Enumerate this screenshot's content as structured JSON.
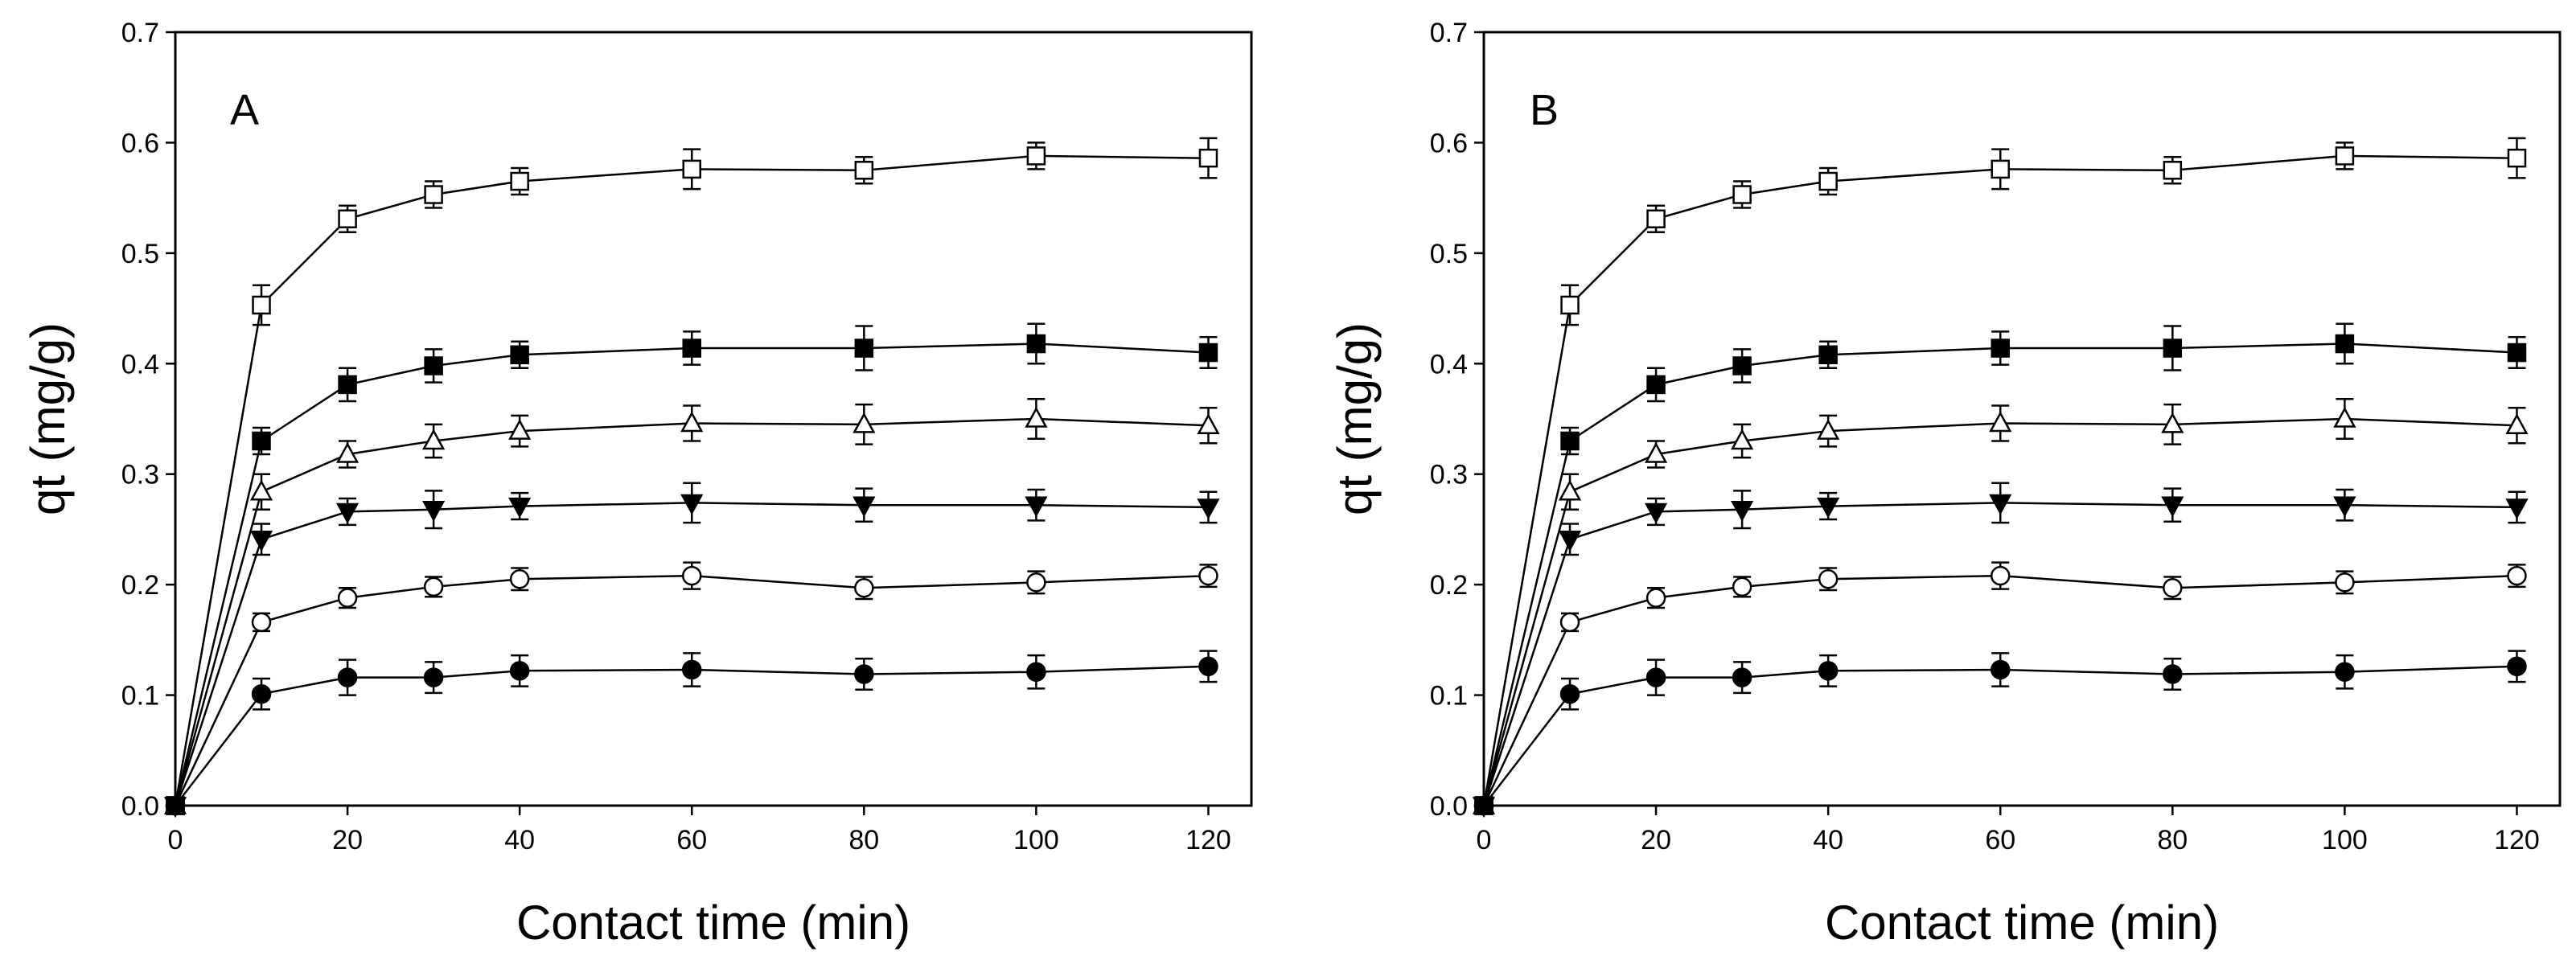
{
  "chart_data": [
    {
      "type": "line",
      "panel_label": "A",
      "xlabel": "Contact time (min)",
      "ylabel": "qt (mg/g)",
      "xlim": [
        0,
        125
      ],
      "ylim": [
        0,
        0.7
      ],
      "x_ticks": [
        0,
        20,
        40,
        60,
        80,
        100,
        120
      ],
      "x_tick_labels": [
        "0",
        "20",
        "40",
        "60",
        "80",
        "100",
        "120"
      ],
      "y_ticks": [
        0,
        0.1,
        0.2,
        0.3,
        0.4,
        0.5,
        0.6,
        0.7
      ],
      "y_tick_labels": [
        "0.0",
        "0.1",
        "0.2",
        "0.3",
        "0.4",
        "0.5",
        "0.6",
        "0.7"
      ],
      "grid": false,
      "x": [
        0,
        10,
        20,
        30,
        40,
        60,
        80,
        100,
        120
      ],
      "series": [
        {
          "marker": "square-open",
          "values": [
            0,
            0.453,
            0.531,
            0.553,
            0.565,
            0.576,
            0.575,
            0.588,
            0.586
          ],
          "errors": [
            0,
            0.018,
            0.012,
            0.012,
            0.012,
            0.018,
            0.012,
            0.012,
            0.018
          ]
        },
        {
          "marker": "square-filled",
          "values": [
            0,
            0.33,
            0.381,
            0.398,
            0.408,
            0.414,
            0.414,
            0.418,
            0.41
          ],
          "errors": [
            0,
            0.012,
            0.015,
            0.015,
            0.012,
            0.015,
            0.02,
            0.018,
            0.014
          ]
        },
        {
          "marker": "triangle-up-open",
          "values": [
            0,
            0.284,
            0.318,
            0.33,
            0.339,
            0.346,
            0.345,
            0.35,
            0.344
          ],
          "errors": [
            0,
            0.016,
            0.012,
            0.015,
            0.014,
            0.016,
            0.018,
            0.018,
            0.016
          ]
        },
        {
          "marker": "triangle-down-filled",
          "values": [
            0,
            0.241,
            0.266,
            0.268,
            0.271,
            0.274,
            0.272,
            0.272,
            0.27
          ],
          "errors": [
            0,
            0.014,
            0.012,
            0.017,
            0.012,
            0.018,
            0.015,
            0.014,
            0.014
          ]
        },
        {
          "marker": "circle-open",
          "values": [
            0,
            0.166,
            0.188,
            0.198,
            0.205,
            0.208,
            0.197,
            0.202,
            0.208
          ],
          "errors": [
            0,
            0.008,
            0.009,
            0.009,
            0.01,
            0.012,
            0.01,
            0.01,
            0.01
          ]
        },
        {
          "marker": "circle-filled",
          "values": [
            0,
            0.101,
            0.116,
            0.116,
            0.122,
            0.123,
            0.119,
            0.121,
            0.126
          ],
          "errors": [
            0,
            0.014,
            0.016,
            0.014,
            0.014,
            0.015,
            0.014,
            0.015,
            0.014
          ]
        }
      ]
    },
    {
      "type": "line",
      "panel_label": "B",
      "xlabel": "Contact time (min)",
      "ylabel": "qt (mg/g)",
      "xlim": [
        0,
        125
      ],
      "ylim": [
        0,
        0.7
      ],
      "x_ticks": [
        0,
        20,
        40,
        60,
        80,
        100,
        120
      ],
      "x_tick_labels": [
        "0",
        "20",
        "40",
        "60",
        "80",
        "100",
        "120"
      ],
      "y_ticks": [
        0,
        0.1,
        0.2,
        0.3,
        0.4,
        0.5,
        0.6,
        0.7
      ],
      "y_tick_labels": [
        "0.0",
        "0.1",
        "0.2",
        "0.3",
        "0.4",
        "0.5",
        "0.6",
        "0.7"
      ],
      "grid": false,
      "x": [
        0,
        10,
        20,
        30,
        40,
        60,
        80,
        100,
        120
      ],
      "series": [
        {
          "marker": "square-open",
          "values": [
            0,
            0.453,
            0.531,
            0.553,
            0.565,
            0.576,
            0.575,
            0.588,
            0.586
          ],
          "errors": [
            0,
            0.018,
            0.012,
            0.012,
            0.012,
            0.018,
            0.012,
            0.012,
            0.018
          ]
        },
        {
          "marker": "square-filled",
          "values": [
            0,
            0.33,
            0.381,
            0.398,
            0.408,
            0.414,
            0.414,
            0.418,
            0.41
          ],
          "errors": [
            0,
            0.012,
            0.015,
            0.015,
            0.012,
            0.015,
            0.02,
            0.018,
            0.014
          ]
        },
        {
          "marker": "triangle-up-open",
          "values": [
            0,
            0.284,
            0.318,
            0.33,
            0.339,
            0.346,
            0.345,
            0.35,
            0.344
          ],
          "errors": [
            0,
            0.016,
            0.012,
            0.015,
            0.014,
            0.016,
            0.018,
            0.018,
            0.016
          ]
        },
        {
          "marker": "triangle-down-filled",
          "values": [
            0,
            0.241,
            0.266,
            0.268,
            0.271,
            0.274,
            0.272,
            0.272,
            0.27
          ],
          "errors": [
            0,
            0.014,
            0.012,
            0.017,
            0.012,
            0.018,
            0.015,
            0.014,
            0.014
          ]
        },
        {
          "marker": "circle-open",
          "values": [
            0,
            0.166,
            0.188,
            0.198,
            0.205,
            0.208,
            0.197,
            0.202,
            0.208
          ],
          "errors": [
            0,
            0.008,
            0.009,
            0.009,
            0.01,
            0.012,
            0.01,
            0.01,
            0.01
          ]
        },
        {
          "marker": "circle-filled",
          "values": [
            0,
            0.101,
            0.116,
            0.116,
            0.122,
            0.123,
            0.119,
            0.121,
            0.126
          ],
          "errors": [
            0,
            0.014,
            0.016,
            0.014,
            0.014,
            0.015,
            0.014,
            0.015,
            0.014
          ]
        }
      ]
    }
  ]
}
